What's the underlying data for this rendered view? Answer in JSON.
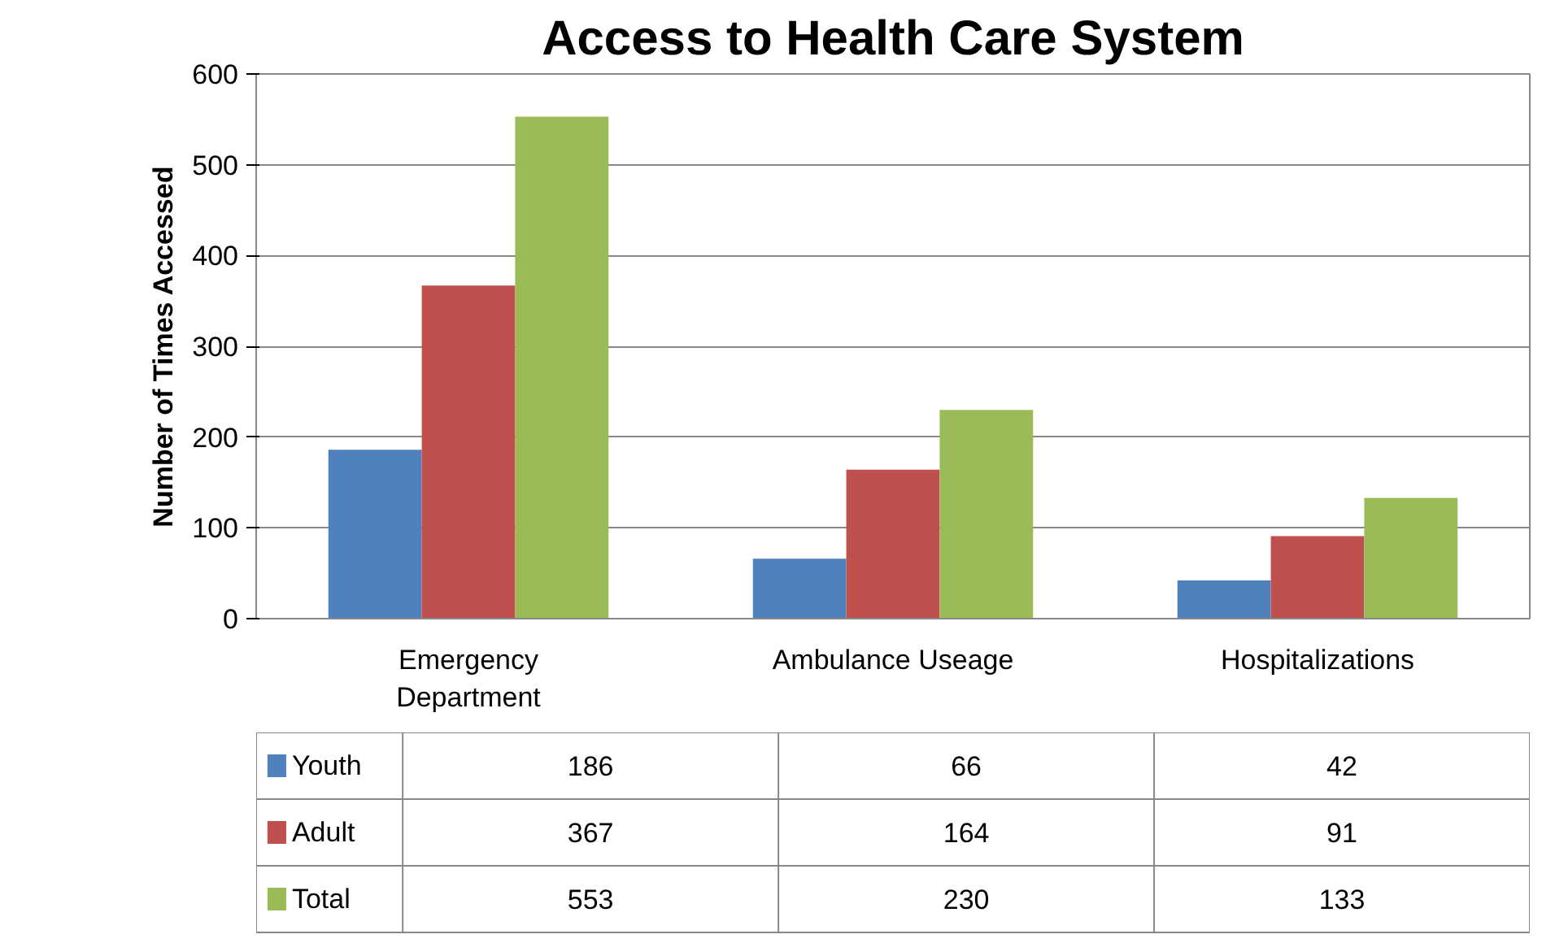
{
  "chart_data": {
    "type": "bar",
    "title": "Access to Health Care System",
    "ylabel": "Number of Times Accessed",
    "categories": [
      "Emergency Department",
      "Ambulance Useage",
      "Hospitalizations"
    ],
    "series": [
      {
        "name": "Youth",
        "color": "#4f81bd",
        "values": [
          186,
          66,
          42
        ]
      },
      {
        "name": "Adult",
        "color": "#c0504d",
        "values": [
          367,
          164,
          91
        ]
      },
      {
        "name": "Total",
        "color": "#9bbb59",
        "values": [
          553,
          230,
          133
        ]
      }
    ],
    "ylim": [
      0,
      600
    ],
    "yticks": [
      0,
      100,
      200,
      300,
      400,
      500,
      600
    ],
    "grid": "y",
    "legend": "bottom left",
    "data_labels": true
  }
}
